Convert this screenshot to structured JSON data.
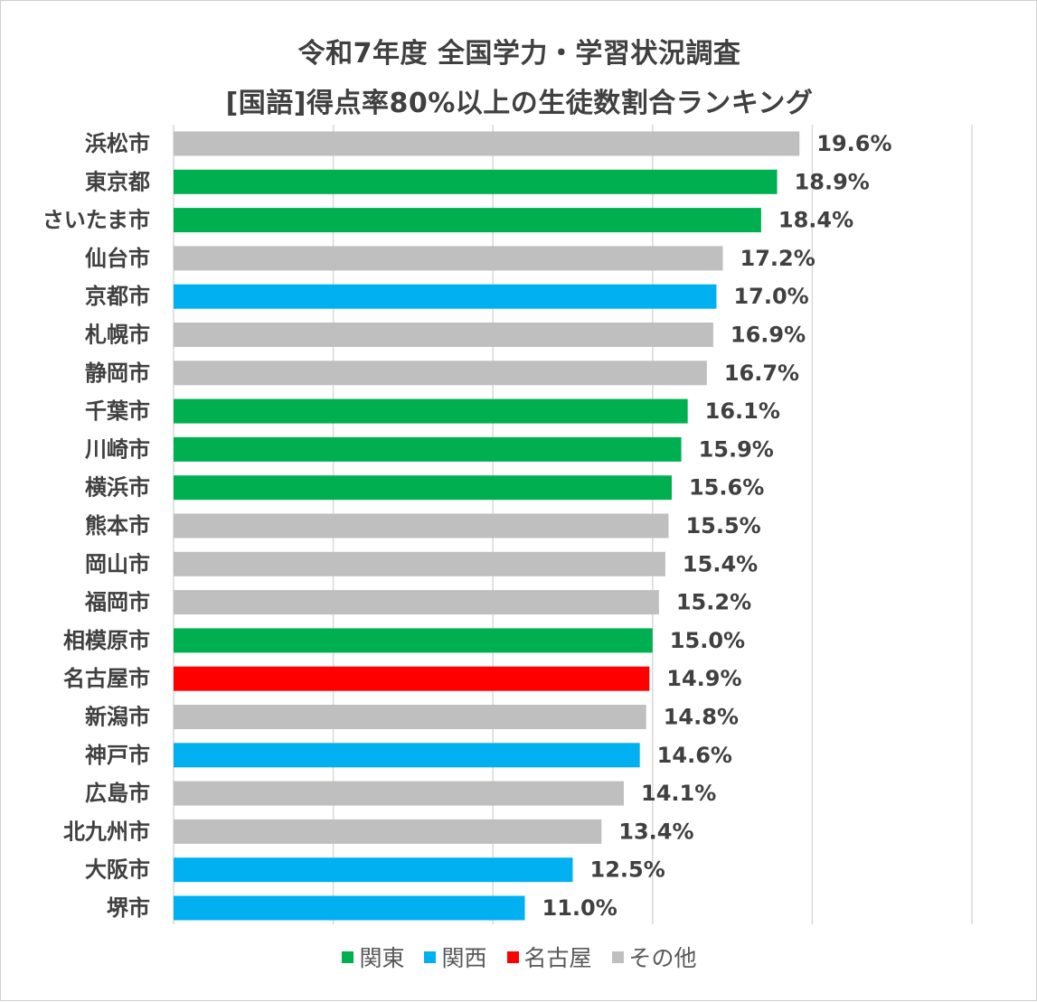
{
  "title_line1": "令和7年度 全国学力・学習状況調査",
  "title_line2": "[国語]得点率80%以上の生徒数割合ランキング",
  "colors": {
    "関東": "#00b050",
    "関西": "#00b0f0",
    "名古屋": "#ff0000",
    "その他": "#bfbfbf"
  },
  "chart_data": {
    "type": "bar",
    "orientation": "horizontal",
    "title": "令和7年度 全国学力・学習状況調査 [国語]得点率80%以上の生徒数割合ランキング",
    "categories": [
      "浜松市",
      "東京都",
      "さいたま市",
      "仙台市",
      "京都市",
      "札幌市",
      "静岡市",
      "千葉市",
      "川崎市",
      "横浜市",
      "熊本市",
      "岡山市",
      "福岡市",
      "相模原市",
      "名古屋市",
      "新潟市",
      "神戸市",
      "広島市",
      "北九州市",
      "大阪市",
      "堺市"
    ],
    "values": [
      19.6,
      18.9,
      18.4,
      17.2,
      17.0,
      16.9,
      16.7,
      16.1,
      15.9,
      15.6,
      15.5,
      15.4,
      15.2,
      15.0,
      14.9,
      14.8,
      14.6,
      14.1,
      13.4,
      12.5,
      11.0
    ],
    "labels": [
      "19.6%",
      "18.9%",
      "18.4%",
      "17.2%",
      "17.0%",
      "16.9%",
      "16.7%",
      "16.1%",
      "15.9%",
      "15.6%",
      "15.5%",
      "15.4%",
      "15.2%",
      "15.0%",
      "14.9%",
      "14.8%",
      "14.6%",
      "14.1%",
      "13.4%",
      "12.5%",
      "11.0%"
    ],
    "groups": [
      "その他",
      "関東",
      "関東",
      "その他",
      "関西",
      "その他",
      "その他",
      "関東",
      "関東",
      "関東",
      "その他",
      "その他",
      "その他",
      "関東",
      "名古屋",
      "その他",
      "関西",
      "その他",
      "その他",
      "関西",
      "関西"
    ],
    "legend": [
      "関東",
      "関西",
      "名古屋",
      "その他"
    ],
    "xlim": [
      0,
      25
    ],
    "gridlines": [
      0,
      5,
      10,
      15,
      20,
      25
    ],
    "grid": true,
    "legend_position": "bottom"
  }
}
